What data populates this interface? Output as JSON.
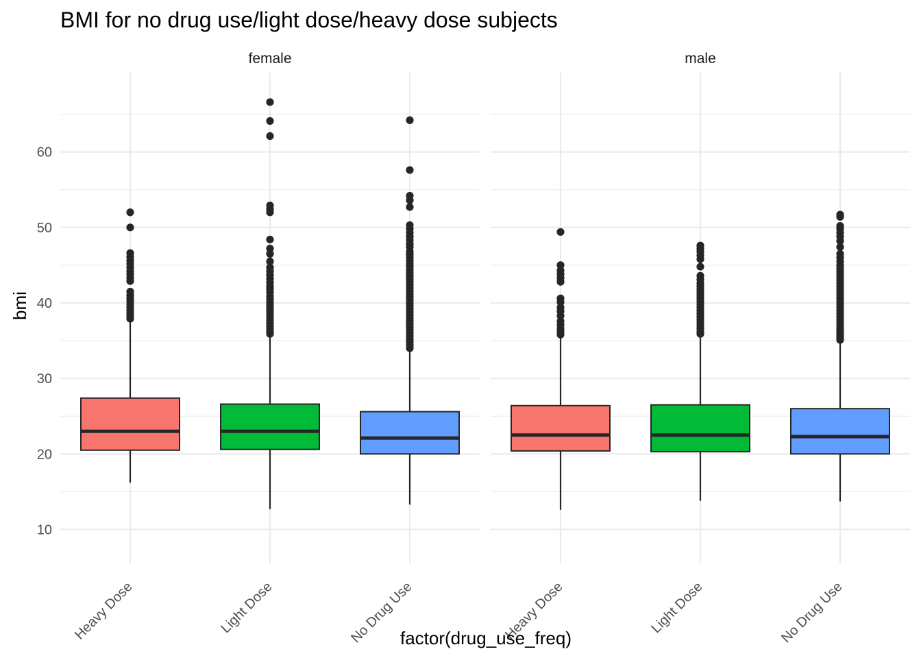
{
  "chart_data": {
    "type": "boxplot",
    "title": "BMI for no drug use/light dose/heavy dose subjects",
    "xlabel": "factor(drug_use_freq)",
    "ylabel": "bmi",
    "ylim": [
      5.5,
      70.5
    ],
    "yticks": [
      10,
      20,
      30,
      40,
      50,
      60
    ],
    "categories": [
      "Heavy Dose",
      "Light Dose",
      "No Drug Use"
    ],
    "colors": {
      "Heavy Dose": "#F8766D",
      "Light Dose": "#00BA38",
      "No Drug Use": "#619CFF"
    },
    "panels": [
      {
        "label": "female",
        "boxes": [
          {
            "category": "Heavy Dose",
            "min": 16.2,
            "q1": 20.5,
            "median": 23.0,
            "q3": 27.4,
            "max": 37.6,
            "outliers": [
              37.9,
              38.2,
              38.6,
              39.0,
              39.4,
              39.8,
              40.2,
              40.6,
              41.0,
              41.5,
              42.9,
              43.3,
              43.8,
              44.2,
              44.7,
              45.2,
              45.6,
              46.1,
              46.6,
              50.0,
              52.0
            ]
          },
          {
            "category": "Light Dose",
            "min": 12.7,
            "q1": 20.6,
            "median": 23.0,
            "q3": 26.6,
            "max": 35.8,
            "outliers": [
              35.9,
              36.2,
              36.5,
              36.9,
              37.3,
              37.7,
              38.1,
              38.5,
              38.9,
              39.3,
              39.7,
              40.1,
              40.5,
              40.9,
              41.4,
              41.8,
              42.2,
              42.7,
              43.2,
              43.7,
              44.2,
              44.7,
              45.5,
              46.5,
              47.2,
              48.4,
              52.0,
              52.4,
              52.9,
              62.1,
              64.1,
              66.6
            ]
          },
          {
            "category": "No Drug Use",
            "min": 13.3,
            "q1": 20.0,
            "median": 22.1,
            "q3": 25.6,
            "max": 33.9,
            "outliers": [
              34.0,
              34.4,
              34.8,
              35.2,
              35.6,
              36.0,
              36.4,
              36.8,
              37.2,
              37.6,
              38.0,
              38.4,
              38.8,
              39.2,
              39.6,
              40.0,
              40.4,
              40.8,
              41.2,
              41.6,
              42.0,
              42.4,
              42.8,
              43.2,
              43.6,
              44.0,
              44.4,
              44.8,
              45.2,
              45.6,
              46.0,
              46.4,
              46.8,
              47.4,
              47.8,
              48.3,
              48.8,
              49.3,
              49.8,
              50.3,
              52.7,
              53.6,
              54.2,
              57.6,
              64.2
            ]
          }
        ]
      },
      {
        "label": "male",
        "boxes": [
          {
            "category": "Heavy Dose",
            "min": 12.6,
            "q1": 20.4,
            "median": 22.5,
            "q3": 26.4,
            "max": 35.6,
            "outliers": [
              35.8,
              36.2,
              36.6,
              37.1,
              37.6,
              38.3,
              38.9,
              39.4,
              40.1,
              40.6,
              42.8,
              43.3,
              43.8,
              44.3,
              45.0,
              49.4
            ]
          },
          {
            "category": "Light Dose",
            "min": 13.8,
            "q1": 20.3,
            "median": 22.5,
            "q3": 26.5,
            "max": 35.7,
            "outliers": [
              35.9,
              36.2,
              36.6,
              37.0,
              37.4,
              37.8,
              38.2,
              38.6,
              39.0,
              39.4,
              39.8,
              40.2,
              40.6,
              41.0,
              41.4,
              41.8,
              42.2,
              42.6,
              43.1,
              43.6,
              44.8,
              45.8,
              46.3,
              46.8,
              47.2,
              47.6
            ]
          },
          {
            "category": "No Drug Use",
            "min": 13.7,
            "q1": 20.0,
            "median": 22.3,
            "q3": 26.0,
            "max": 35.0,
            "outliers": [
              35.1,
              35.4,
              35.7,
              36.0,
              36.3,
              36.6,
              37.0,
              37.4,
              37.8,
              38.2,
              38.6,
              39.0,
              39.4,
              39.8,
              40.2,
              40.6,
              41.0,
              41.4,
              41.8,
              42.2,
              42.6,
              43.0,
              43.4,
              43.8,
              44.2,
              44.6,
              45.0,
              45.5,
              46.0,
              46.5,
              47.4,
              48.2,
              48.8,
              49.3,
              49.8,
              50.2,
              51.4,
              51.7
            ]
          }
        ]
      }
    ]
  }
}
